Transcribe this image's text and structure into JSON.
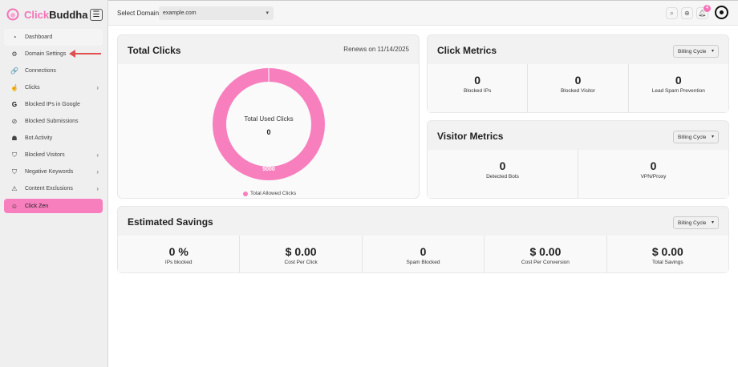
{
  "brand": {
    "name_a": "Click",
    "name_b": "Buddha"
  },
  "sidebar": {
    "items": [
      {
        "label": "Dashboard",
        "icon": "dashboard-icon",
        "glyph": "◔"
      },
      {
        "label": "Domain Settings",
        "icon": "gear-icon",
        "glyph": "⚙"
      },
      {
        "label": "Connections",
        "icon": "link-icon",
        "glyph": "🔗"
      },
      {
        "label": "Clicks",
        "icon": "click-icon",
        "glyph": "☝"
      },
      {
        "label": "Blocked IPs in Google",
        "icon": "google-icon",
        "glyph": "G"
      },
      {
        "label": "Blocked Submissions",
        "icon": "ban-icon",
        "glyph": "⊘"
      },
      {
        "label": "Bot Activity",
        "icon": "bot-icon",
        "glyph": "☗"
      },
      {
        "label": "Blocked Visitors",
        "icon": "shield-icon",
        "glyph": "⛉"
      },
      {
        "label": "Negative Keywords",
        "icon": "shield-alert-icon",
        "glyph": "⛉"
      },
      {
        "label": "Content Exclusions",
        "icon": "warning-icon",
        "glyph": "⚠"
      },
      {
        "label": "Click Zen",
        "icon": "zen-icon",
        "glyph": "☺"
      }
    ]
  },
  "topbar": {
    "domain_label": "Select Domain",
    "domain_value": "example.com",
    "notifications": "4"
  },
  "total_clicks": {
    "title": "Total Clicks",
    "renews": "Renews on 11/14/2025",
    "center_label": "Total Used Clicks",
    "used": "0",
    "allowed": "5000",
    "legend": "Total Allowed Clicks",
    "color": "#f77fbe"
  },
  "click_metrics": {
    "title": "Click Metrics",
    "billing": "Billing Cycle",
    "items": [
      {
        "value": "0",
        "label": "Blocked IPs"
      },
      {
        "value": "0",
        "label": "Blocked Visitor"
      },
      {
        "value": "0",
        "label": "Lead Spam Prevention"
      }
    ]
  },
  "visitor_metrics": {
    "title": "Visitor Metrics",
    "billing": "Billing Cycle",
    "items": [
      {
        "value": "0",
        "label": "Detected Bots"
      },
      {
        "value": "0",
        "label": "VPN/Proxy"
      }
    ]
  },
  "savings": {
    "title": "Estimated Savings",
    "billing": "Billing Cycle",
    "items": [
      {
        "value": "0 %",
        "label": "IPs blocked"
      },
      {
        "value": "$ 0.00",
        "label": "Cost Per Click"
      },
      {
        "value": "0",
        "label": "Spam Blocked"
      },
      {
        "value": "$ 0.00",
        "label": "Cost Per Conversion"
      },
      {
        "value": "$ 0.00",
        "label": "Total Savings"
      }
    ]
  }
}
